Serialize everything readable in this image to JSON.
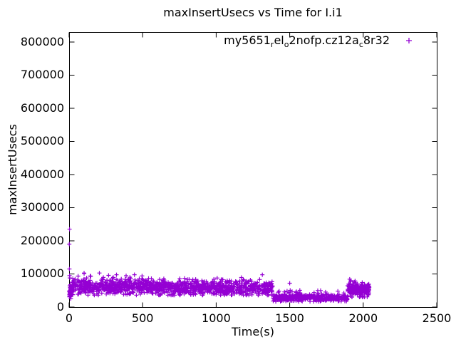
{
  "chart": {
    "title": "maxInsertUsecs vs Time for I.i1",
    "xlabel": "Time(s)",
    "ylabel": "maxInsertUsecs"
  },
  "legend": {
    "series_name_plain": "my5651_rel_o2nofp.cz12a_c8r32",
    "parts": [
      {
        "text": "my5651"
      },
      {
        "text": "r",
        "subscript": true
      },
      {
        "text": "el"
      },
      {
        "text": "o",
        "subscript": true
      },
      {
        "text": "2nofp.cz12a"
      },
      {
        "text": "c",
        "subscript": true
      },
      {
        "text": "8r32"
      }
    ],
    "marker": "plus-icon",
    "color": "#9400d3"
  },
  "chart_data": {
    "type": "scatter",
    "title": "maxInsertUsecs vs Time for I.i1",
    "xlabel": "Time(s)",
    "ylabel": "maxInsertUsecs",
    "xlim": [
      0,
      2500
    ],
    "ylim": [
      0,
      830000
    ],
    "xticks": [
      0,
      500,
      1000,
      1500,
      2000,
      2500
    ],
    "yticks": [
      0,
      100000,
      200000,
      300000,
      400000,
      500000,
      600000,
      700000,
      800000
    ],
    "grid": false,
    "legend_position": "top-right-inside",
    "series": [
      {
        "name": "my5651_rel_o2nofp.cz12a_c8r32",
        "marker": "plus",
        "color": "#9400d3",
        "seed": 1337,
        "outlier_points": [
          [
            1,
            190000
          ],
          [
            3,
            235000
          ],
          [
            2,
            115000
          ],
          [
            3,
            95000
          ],
          [
            5,
            88000
          ],
          [
            1500,
            72000
          ],
          [
            1908,
            84000
          ],
          [
            1916,
            80000
          ]
        ],
        "band_segments": [
          {
            "x_start": 2,
            "x_end": 1386,
            "count": 1250,
            "y_center_start": 62000,
            "y_center_end": 55000,
            "y_sigma": 11000,
            "y_min": 36000,
            "y_max": 112000,
            "spike_prob": 0.05,
            "spike_max_start": 40000,
            "spike_max_end": 18000
          },
          {
            "x_start": 1,
            "x_end": 26,
            "count": 40,
            "y_center_start": 42000,
            "y_center_end": 48000,
            "y_sigma": 9000,
            "y_min": 24000,
            "y_max": 60000,
            "spike_prob": 0.0,
            "spike_max_start": 0,
            "spike_max_end": 0
          },
          {
            "x_start": 1388,
            "x_end": 1893,
            "count": 440,
            "y_center_start": 29000,
            "y_center_end": 27500,
            "y_sigma": 5000,
            "y_min": 17000,
            "y_max": 56000,
            "spike_prob": 0.07,
            "spike_max_start": 20000,
            "spike_max_end": 20000
          },
          {
            "x_start": 1894,
            "x_end": 2042,
            "count": 180,
            "y_center_start": 55000,
            "y_center_end": 50000,
            "y_sigma": 10000,
            "y_min": 30000,
            "y_max": 85000,
            "spike_prob": 0.05,
            "spike_max_start": 26000,
            "spike_max_end": 12000
          }
        ]
      }
    ]
  }
}
